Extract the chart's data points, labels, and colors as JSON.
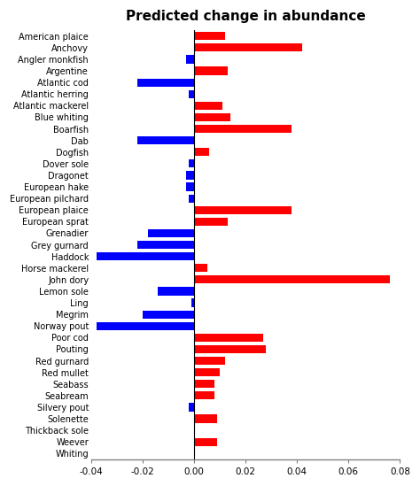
{
  "title": "Predicted change in abundance",
  "xlim": [
    -0.04,
    0.08
  ],
  "xticks": [
    -0.04,
    -0.02,
    0.0,
    0.02,
    0.04,
    0.06,
    0.08
  ],
  "xtick_labels": [
    "-0.04",
    "-0.02",
    "0.00",
    "0.02",
    "0.04",
    "0.06",
    "0.08"
  ],
  "categories": [
    "American plaice",
    "Anchovy",
    "Angler monkfish",
    "Argentine",
    "Atlantic cod",
    "Atlantic herring",
    "Atlantic mackerel",
    "Blue whiting",
    "Boarfish",
    "Dab",
    "Dogfish",
    "Dover sole",
    "Dragonet",
    "European hake",
    "European pilchard",
    "European plaice",
    "European sprat",
    "Grenadier",
    "Grey gurnard",
    "Haddock",
    "Horse mackerel",
    "John dory",
    "Lemon sole",
    "Ling",
    "Megrim",
    "Norway pout",
    "Poor cod",
    "Pouting",
    "Red gurnard",
    "Red mullet",
    "Seabass",
    "Seabream",
    "Silvery pout",
    "Solenette",
    "Thickback sole",
    "Weever",
    "Whiting"
  ],
  "values": [
    0.012,
    0.042,
    -0.003,
    0.013,
    -0.022,
    -0.002,
    0.011,
    0.014,
    0.038,
    -0.022,
    0.006,
    -0.002,
    -0.003,
    -0.003,
    -0.002,
    0.038,
    0.013,
    -0.018,
    -0.022,
    -0.038,
    0.005,
    0.076,
    -0.014,
    -0.001,
    -0.02,
    -0.038,
    0.027,
    0.028,
    0.012,
    0.01,
    0.008,
    0.008,
    -0.002,
    0.009,
    0.0,
    0.009,
    0.0
  ],
  "bar_color_positive": "#FF0000",
  "bar_color_negative": "#0000FF",
  "background_color": "#FFFFFF",
  "title_fontsize": 11,
  "label_fontsize": 7
}
